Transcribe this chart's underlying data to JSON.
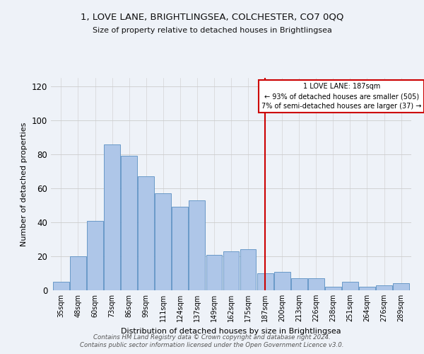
{
  "title": "1, LOVE LANE, BRIGHTLINGSEA, COLCHESTER, CO7 0QQ",
  "subtitle": "Size of property relative to detached houses in Brightlingsea",
  "xlabel": "Distribution of detached houses by size in Brightlingsea",
  "ylabel": "Number of detached properties",
  "bar_labels": [
    "35sqm",
    "48sqm",
    "60sqm",
    "73sqm",
    "86sqm",
    "99sqm",
    "111sqm",
    "124sqm",
    "137sqm",
    "149sqm",
    "162sqm",
    "175sqm",
    "187sqm",
    "200sqm",
    "213sqm",
    "226sqm",
    "238sqm",
    "251sqm",
    "264sqm",
    "276sqm",
    "289sqm"
  ],
  "bar_values": [
    5,
    20,
    41,
    86,
    79,
    67,
    57,
    49,
    53,
    21,
    23,
    24,
    10,
    11,
    7,
    7,
    2,
    5,
    2,
    3,
    4
  ],
  "bar_color": "#aec6e8",
  "bar_edge_color": "#5a8fc2",
  "vline_x": 12,
  "vline_color": "#cc0000",
  "annotation_title": "1 LOVE LANE: 187sqm",
  "annotation_line1": "← 93% of detached houses are smaller (505)",
  "annotation_line2": "7% of semi-detached houses are larger (37) →",
  "annotation_box_color": "#ffffff",
  "annotation_box_edge": "#cc0000",
  "ylim": [
    0,
    125
  ],
  "yticks": [
    0,
    20,
    40,
    60,
    80,
    100,
    120
  ],
  "grid_color": "#cccccc",
  "background_color": "#eef2f8",
  "footer1": "Contains HM Land Registry data © Crown copyright and database right 2024.",
  "footer2": "Contains public sector information licensed under the Open Government Licence v3.0."
}
